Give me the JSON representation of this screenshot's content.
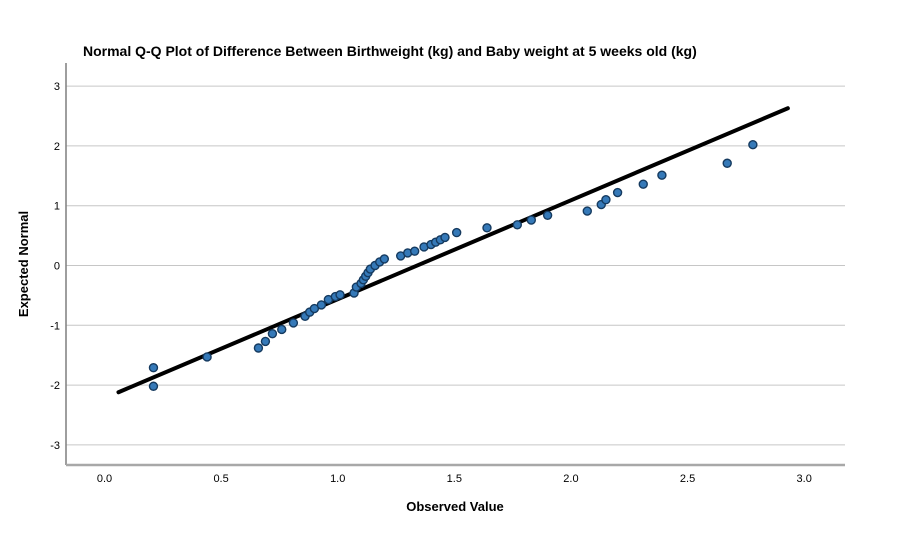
{
  "title": "Normal Q-Q Plot of Difference Between Birthweight (kg) and Baby weight at 5 weeks old (kg)",
  "chart_data": {
    "type": "scatter",
    "title": "Normal Q-Q Plot of Difference Between Birthweight (kg) and Baby weight at 5 weeks old (kg)",
    "xlabel": "Observed Value",
    "ylabel": "Expected Normal",
    "xlim": [
      -0.165,
      3.175
    ],
    "ylim": [
      -3.337,
      3.387
    ],
    "x_ticks": [
      0.0,
      0.5,
      1.0,
      1.5,
      2.0,
      2.5,
      3.0
    ],
    "x_tick_labels": [
      "0.0",
      "0.5",
      "1.0",
      "1.5",
      "2.0",
      "2.5",
      "3.0"
    ],
    "y_ticks": [
      -3,
      -2,
      -1,
      0,
      1,
      2,
      3
    ],
    "y_tick_labels": [
      "-3",
      "-2",
      "-1",
      "0",
      "1",
      "2",
      "3"
    ],
    "grid": "horizontal",
    "legend": "none",
    "points": [
      [
        0.21,
        -2.02
      ],
      [
        0.21,
        -1.71
      ],
      [
        0.44,
        -1.53
      ],
      [
        0.66,
        -1.38
      ],
      [
        0.69,
        -1.27
      ],
      [
        0.72,
        -1.14
      ],
      [
        0.76,
        -1.07
      ],
      [
        0.81,
        -0.96
      ],
      [
        0.86,
        -0.85
      ],
      [
        0.88,
        -0.78
      ],
      [
        0.9,
        -0.72
      ],
      [
        0.93,
        -0.66
      ],
      [
        0.96,
        -0.57
      ],
      [
        0.99,
        -0.52
      ],
      [
        1.01,
        -0.49
      ],
      [
        1.07,
        -0.46
      ],
      [
        1.08,
        -0.36
      ],
      [
        1.1,
        -0.3
      ],
      [
        1.11,
        -0.24
      ],
      [
        1.12,
        -0.18
      ],
      [
        1.13,
        -0.12
      ],
      [
        1.14,
        -0.06
      ],
      [
        1.16,
        0.0
      ],
      [
        1.18,
        0.06
      ],
      [
        1.2,
        0.11
      ],
      [
        1.27,
        0.16
      ],
      [
        1.3,
        0.21
      ],
      [
        1.33,
        0.24
      ],
      [
        1.37,
        0.31
      ],
      [
        1.4,
        0.35
      ],
      [
        1.42,
        0.39
      ],
      [
        1.44,
        0.43
      ],
      [
        1.46,
        0.47
      ],
      [
        1.51,
        0.55
      ],
      [
        1.64,
        0.63
      ],
      [
        1.77,
        0.68
      ],
      [
        1.83,
        0.76
      ],
      [
        1.9,
        0.84
      ],
      [
        2.07,
        0.91
      ],
      [
        2.13,
        1.02
      ],
      [
        2.15,
        1.1
      ],
      [
        2.2,
        1.22
      ],
      [
        2.31,
        1.36
      ],
      [
        2.39,
        1.51
      ],
      [
        2.67,
        1.71
      ],
      [
        2.78,
        2.02
      ]
    ],
    "reference_line": {
      "x1": 0.06,
      "y1": -2.12,
      "x2": 2.93,
      "y2": 2.63
    },
    "colors": {
      "marker_fill": "#3579b8",
      "marker_stroke": "#153a5f",
      "reference_line": "#000000",
      "gridline": "#c6c6c6",
      "x_axis_line": "#a8a8a8",
      "y_axis_line": "#7f7f7f",
      "text": "#000000",
      "background": "#ffffff"
    }
  }
}
